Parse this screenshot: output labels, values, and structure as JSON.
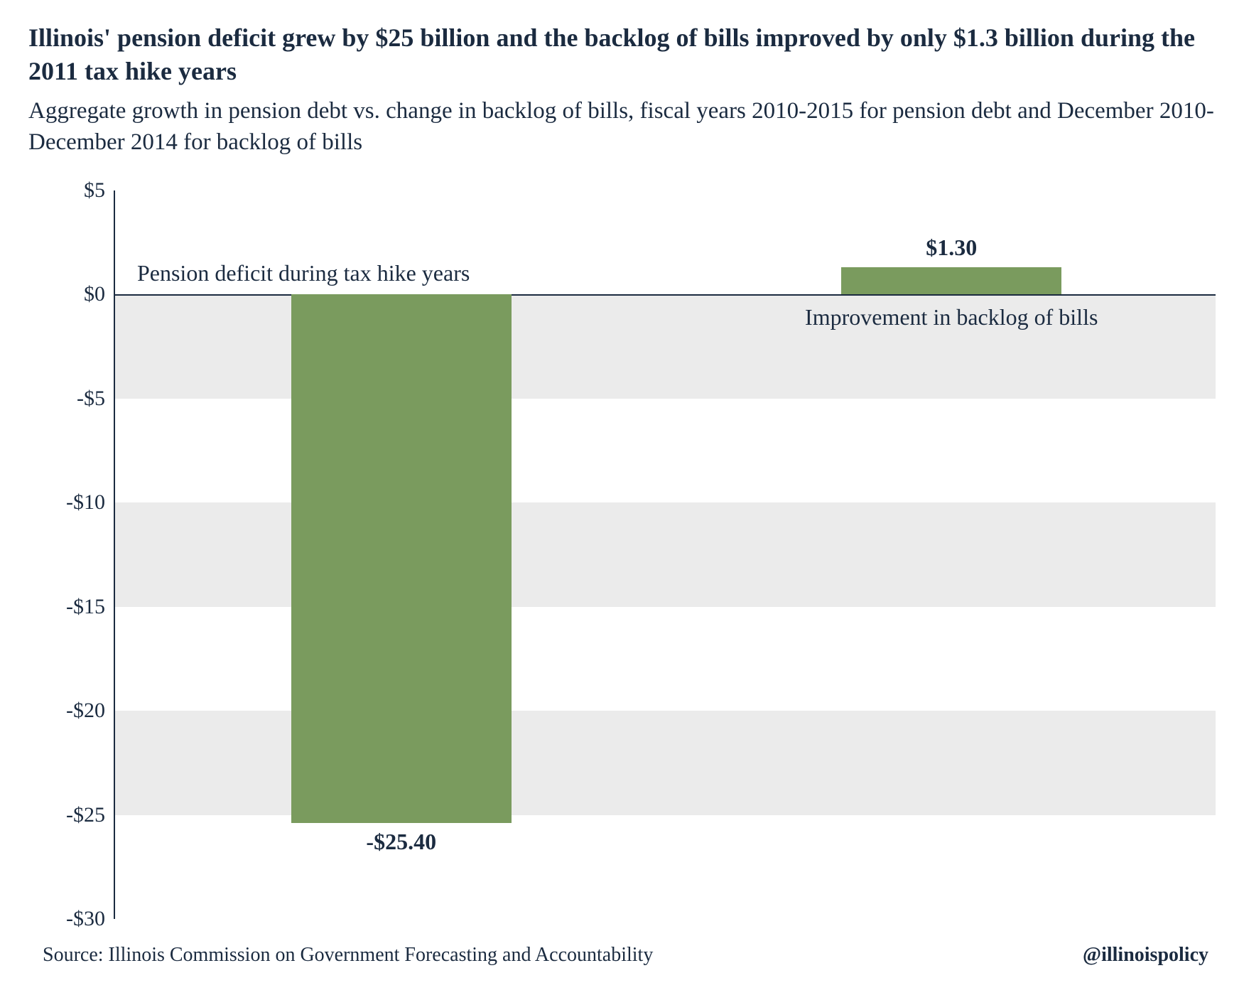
{
  "title": "Illinois' pension deficit grew by $25 billion and the backlog of bills improved by only $1.3 billion during the 2011 tax hike years",
  "subtitle": "Aggregate growth in pension debt vs. change in backlog of bills, fiscal years 2010-2015 for pension debt and December 2010-December 2014 for backlog of bills",
  "chart": {
    "type": "bar",
    "ylim": [
      -30,
      5
    ],
    "ytick_step": 5,
    "yticks": [
      "$5",
      "$0",
      "-$5",
      "-$10",
      "-$15",
      "-$20",
      "-$25",
      "-$30"
    ],
    "ytick_values": [
      5,
      0,
      -5,
      -10,
      -15,
      -20,
      -25,
      -30
    ],
    "categories": [
      "Pension deficit during tax hike years",
      "Improvement in backlog of bills"
    ],
    "values": [
      -25.4,
      1.3
    ],
    "value_labels": [
      "-$25.40",
      "$1.30"
    ],
    "bar_color": "#7a9b5e",
    "band_color": "#ebebeb",
    "background_color": "#ffffff",
    "axis_color": "#1b2b40",
    "zero_line_color": "#1b2b40",
    "text_color": "#1b2b40",
    "title_fontsize": 36,
    "subtitle_fontsize": 33,
    "tick_fontsize": 30,
    "cat_label_fontsize": 32,
    "value_label_fontsize": 32,
    "footer_fontsize": 28,
    "bar_width_pct": 20,
    "bar_positions_pct": [
      16,
      66
    ]
  },
  "source": "Source: Illinois Commission on Government Forecasting and Accountability",
  "handle": "@illinoispolicy"
}
